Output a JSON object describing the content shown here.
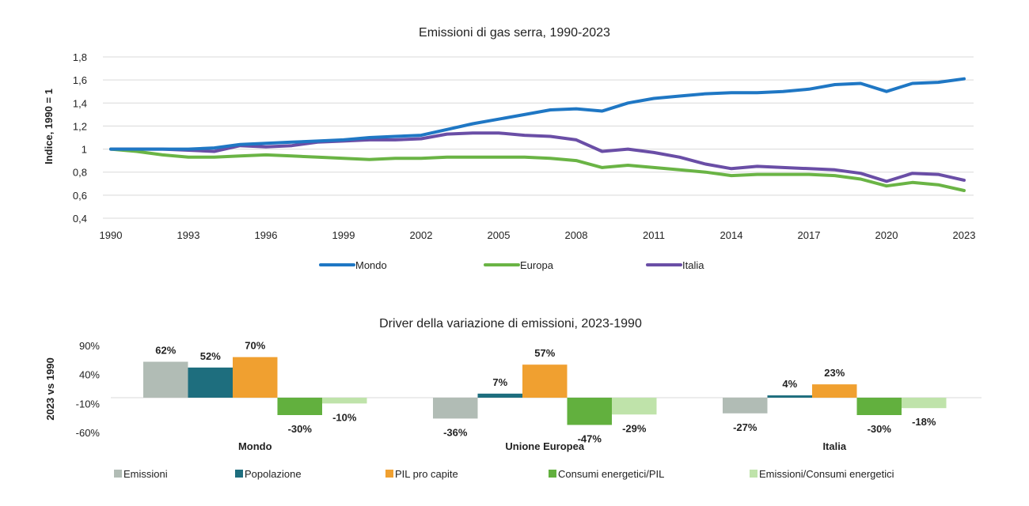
{
  "chart_data": [
    {
      "type": "line",
      "title": "Emissioni di gas serra, 1990-2023",
      "ylabel": "Indice, 1990 = 1",
      "xlabel": "",
      "ylim": [
        0.4,
        1.8
      ],
      "yticks": [
        "0,4",
        "0,6",
        "0,8",
        "1",
        "1,2",
        "1,4",
        "1,6",
        "1,8"
      ],
      "xticks": [
        "1990",
        "1993",
        "1996",
        "1999",
        "2002",
        "2005",
        "2008",
        "2011",
        "2014",
        "2017",
        "2020",
        "2023"
      ],
      "x": [
        1990,
        1991,
        1992,
        1993,
        1994,
        1995,
        1996,
        1997,
        1998,
        1999,
        2000,
        2001,
        2002,
        2003,
        2004,
        2005,
        2006,
        2007,
        2008,
        2009,
        2010,
        2011,
        2012,
        2013,
        2014,
        2015,
        2016,
        2017,
        2018,
        2019,
        2020,
        2021,
        2022,
        2023
      ],
      "grid": true,
      "legend_position": "bottom",
      "series": [
        {
          "name": "Mondo",
          "color": "#1f77c4",
          "values": [
            1.0,
            1.0,
            1.0,
            1.0,
            1.01,
            1.04,
            1.05,
            1.06,
            1.07,
            1.08,
            1.1,
            1.11,
            1.12,
            1.17,
            1.22,
            1.26,
            1.3,
            1.34,
            1.35,
            1.33,
            1.4,
            1.44,
            1.46,
            1.48,
            1.49,
            1.49,
            1.5,
            1.52,
            1.56,
            1.57,
            1.5,
            1.57,
            1.58,
            1.61
          ]
        },
        {
          "name": "Europa",
          "color": "#6ab445",
          "values": [
            1.0,
            0.98,
            0.95,
            0.93,
            0.93,
            0.94,
            0.95,
            0.94,
            0.93,
            0.92,
            0.91,
            0.92,
            0.92,
            0.93,
            0.93,
            0.93,
            0.93,
            0.92,
            0.9,
            0.84,
            0.86,
            0.84,
            0.82,
            0.8,
            0.77,
            0.78,
            0.78,
            0.78,
            0.77,
            0.74,
            0.68,
            0.71,
            0.69,
            0.64
          ]
        },
        {
          "name": "Italia",
          "color": "#6a4ea6",
          "values": [
            1.0,
            1.0,
            1.0,
            0.99,
            0.98,
            1.03,
            1.02,
            1.03,
            1.06,
            1.07,
            1.08,
            1.08,
            1.09,
            1.13,
            1.14,
            1.14,
            1.12,
            1.11,
            1.08,
            0.98,
            1.0,
            0.97,
            0.93,
            0.87,
            0.83,
            0.85,
            0.84,
            0.83,
            0.82,
            0.79,
            0.72,
            0.79,
            0.78,
            0.73
          ]
        }
      ]
    },
    {
      "type": "bar",
      "title": "Driver della variazione di emissioni, 2023-1990",
      "ylabel": "2023 vs 1990",
      "xlabel": "",
      "ylim": [
        -60,
        90
      ],
      "yticks": [
        "90%",
        "40%",
        "-10%",
        "-60%"
      ],
      "categories": [
        "Mondo",
        "Unione Europea",
        "Italia"
      ],
      "legend_position": "bottom",
      "series": [
        {
          "name": "Emissioni",
          "color": "#b1bcb5",
          "values": [
            62,
            -36,
            -27
          ],
          "labels": [
            "62%",
            "-36%",
            "-27%"
          ]
        },
        {
          "name": "Popolazione",
          "color": "#1e6e7e",
          "values": [
            52,
            7,
            4
          ],
          "labels": [
            "52%",
            "7%",
            "4%"
          ]
        },
        {
          "name": "PIL pro capite",
          "color": "#f0a030",
          "values": [
            70,
            57,
            23
          ],
          "labels": [
            "70%",
            "57%",
            "23%"
          ]
        },
        {
          "name": "Consumi energetici/PIL",
          "color": "#62b03e",
          "values": [
            -30,
            -47,
            -30
          ],
          "labels": [
            "-30%",
            "-47%",
            "-30%"
          ]
        },
        {
          "name": "Emissioni/Consumi energetici",
          "color": "#bfe3aa",
          "values": [
            -10,
            -29,
            -18
          ],
          "labels": [
            "-10%",
            "-29%",
            "-18%"
          ]
        }
      ]
    }
  ]
}
